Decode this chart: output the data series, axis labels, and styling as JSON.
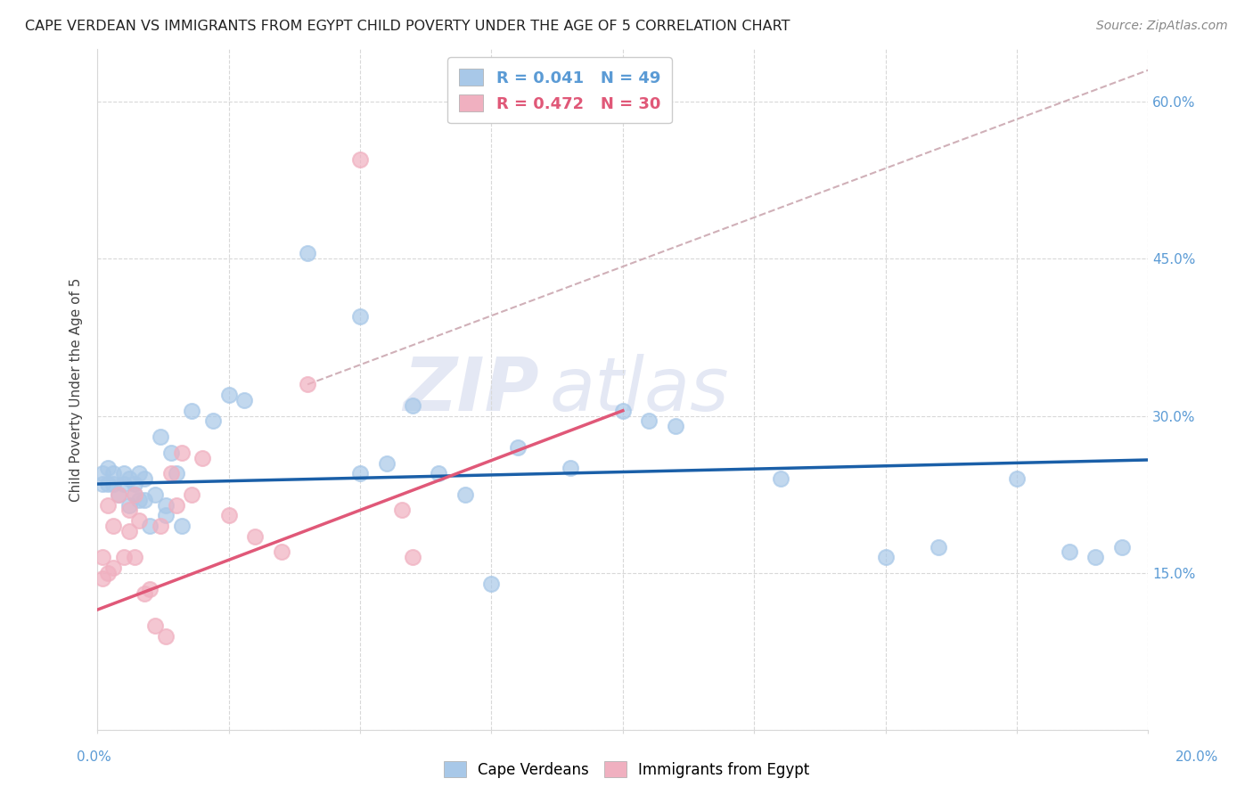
{
  "title": "CAPE VERDEAN VS IMMIGRANTS FROM EGYPT CHILD POVERTY UNDER THE AGE OF 5 CORRELATION CHART",
  "source": "Source: ZipAtlas.com",
  "ylabel": "Child Poverty Under the Age of 5",
  "legend1_label": "Cape Verdeans",
  "legend2_label": "Immigrants from Egypt",
  "R1": "0.041",
  "N1": "49",
  "R2": "0.472",
  "N2": "30",
  "blue_color": "#a8c8e8",
  "pink_color": "#f0b0c0",
  "blue_line_color": "#1a5fa8",
  "pink_line_color": "#e05878",
  "dash_line_color": "#d0b0b8",
  "background_color": "#ffffff",
  "grid_color": "#d8d8d8",
  "title_color": "#222222",
  "source_color": "#888888",
  "right_tick_color": "#5b9bd5",
  "watermark_color": "#e4e8f4",
  "xlim": [
    0,
    0.2
  ],
  "ylim": [
    0,
    0.65
  ],
  "ytick_vals": [
    0.0,
    0.15,
    0.3,
    0.45,
    0.6
  ],
  "ytick_labels": [
    "",
    "15.0%",
    "30.0%",
    "45.0%",
    "60.0%"
  ],
  "xtick_vals": [
    0.0,
    0.025,
    0.05,
    0.075,
    0.1,
    0.125,
    0.15,
    0.175,
    0.2
  ],
  "blue_line_x": [
    0.0,
    0.2
  ],
  "blue_line_y": [
    0.235,
    0.258
  ],
  "pink_line_x": [
    0.0,
    0.1
  ],
  "pink_line_y": [
    0.115,
    0.305
  ],
  "dash_line_x": [
    0.04,
    0.2
  ],
  "dash_line_y": [
    0.33,
    0.63
  ],
  "cv_x": [
    0.001,
    0.001,
    0.002,
    0.002,
    0.003,
    0.003,
    0.004,
    0.005,
    0.005,
    0.006,
    0.006,
    0.007,
    0.007,
    0.008,
    0.008,
    0.009,
    0.009,
    0.01,
    0.011,
    0.012,
    0.013,
    0.013,
    0.014,
    0.015,
    0.016,
    0.018,
    0.022,
    0.025,
    0.028,
    0.04,
    0.05,
    0.055,
    0.06,
    0.065,
    0.075,
    0.08,
    0.09,
    0.1,
    0.105,
    0.13,
    0.15,
    0.16,
    0.175,
    0.185,
    0.19,
    0.195,
    0.11,
    0.07,
    0.05
  ],
  "cv_y": [
    0.235,
    0.245,
    0.235,
    0.25,
    0.235,
    0.245,
    0.225,
    0.235,
    0.245,
    0.215,
    0.24,
    0.225,
    0.235,
    0.22,
    0.245,
    0.24,
    0.22,
    0.195,
    0.225,
    0.28,
    0.205,
    0.215,
    0.265,
    0.245,
    0.195,
    0.305,
    0.295,
    0.32,
    0.315,
    0.455,
    0.395,
    0.255,
    0.31,
    0.245,
    0.14,
    0.27,
    0.25,
    0.305,
    0.295,
    0.24,
    0.165,
    0.175,
    0.24,
    0.17,
    0.165,
    0.175,
    0.29,
    0.225,
    0.245
  ],
  "eg_x": [
    0.001,
    0.001,
    0.002,
    0.002,
    0.003,
    0.003,
    0.004,
    0.005,
    0.006,
    0.006,
    0.007,
    0.007,
    0.008,
    0.009,
    0.01,
    0.011,
    0.012,
    0.013,
    0.014,
    0.015,
    0.016,
    0.018,
    0.02,
    0.025,
    0.03,
    0.035,
    0.04,
    0.05,
    0.058,
    0.06
  ],
  "eg_y": [
    0.165,
    0.145,
    0.15,
    0.215,
    0.195,
    0.155,
    0.225,
    0.165,
    0.21,
    0.19,
    0.225,
    0.165,
    0.2,
    0.13,
    0.135,
    0.1,
    0.195,
    0.09,
    0.245,
    0.215,
    0.265,
    0.225,
    0.26,
    0.205,
    0.185,
    0.17,
    0.33,
    0.545,
    0.21,
    0.165
  ]
}
